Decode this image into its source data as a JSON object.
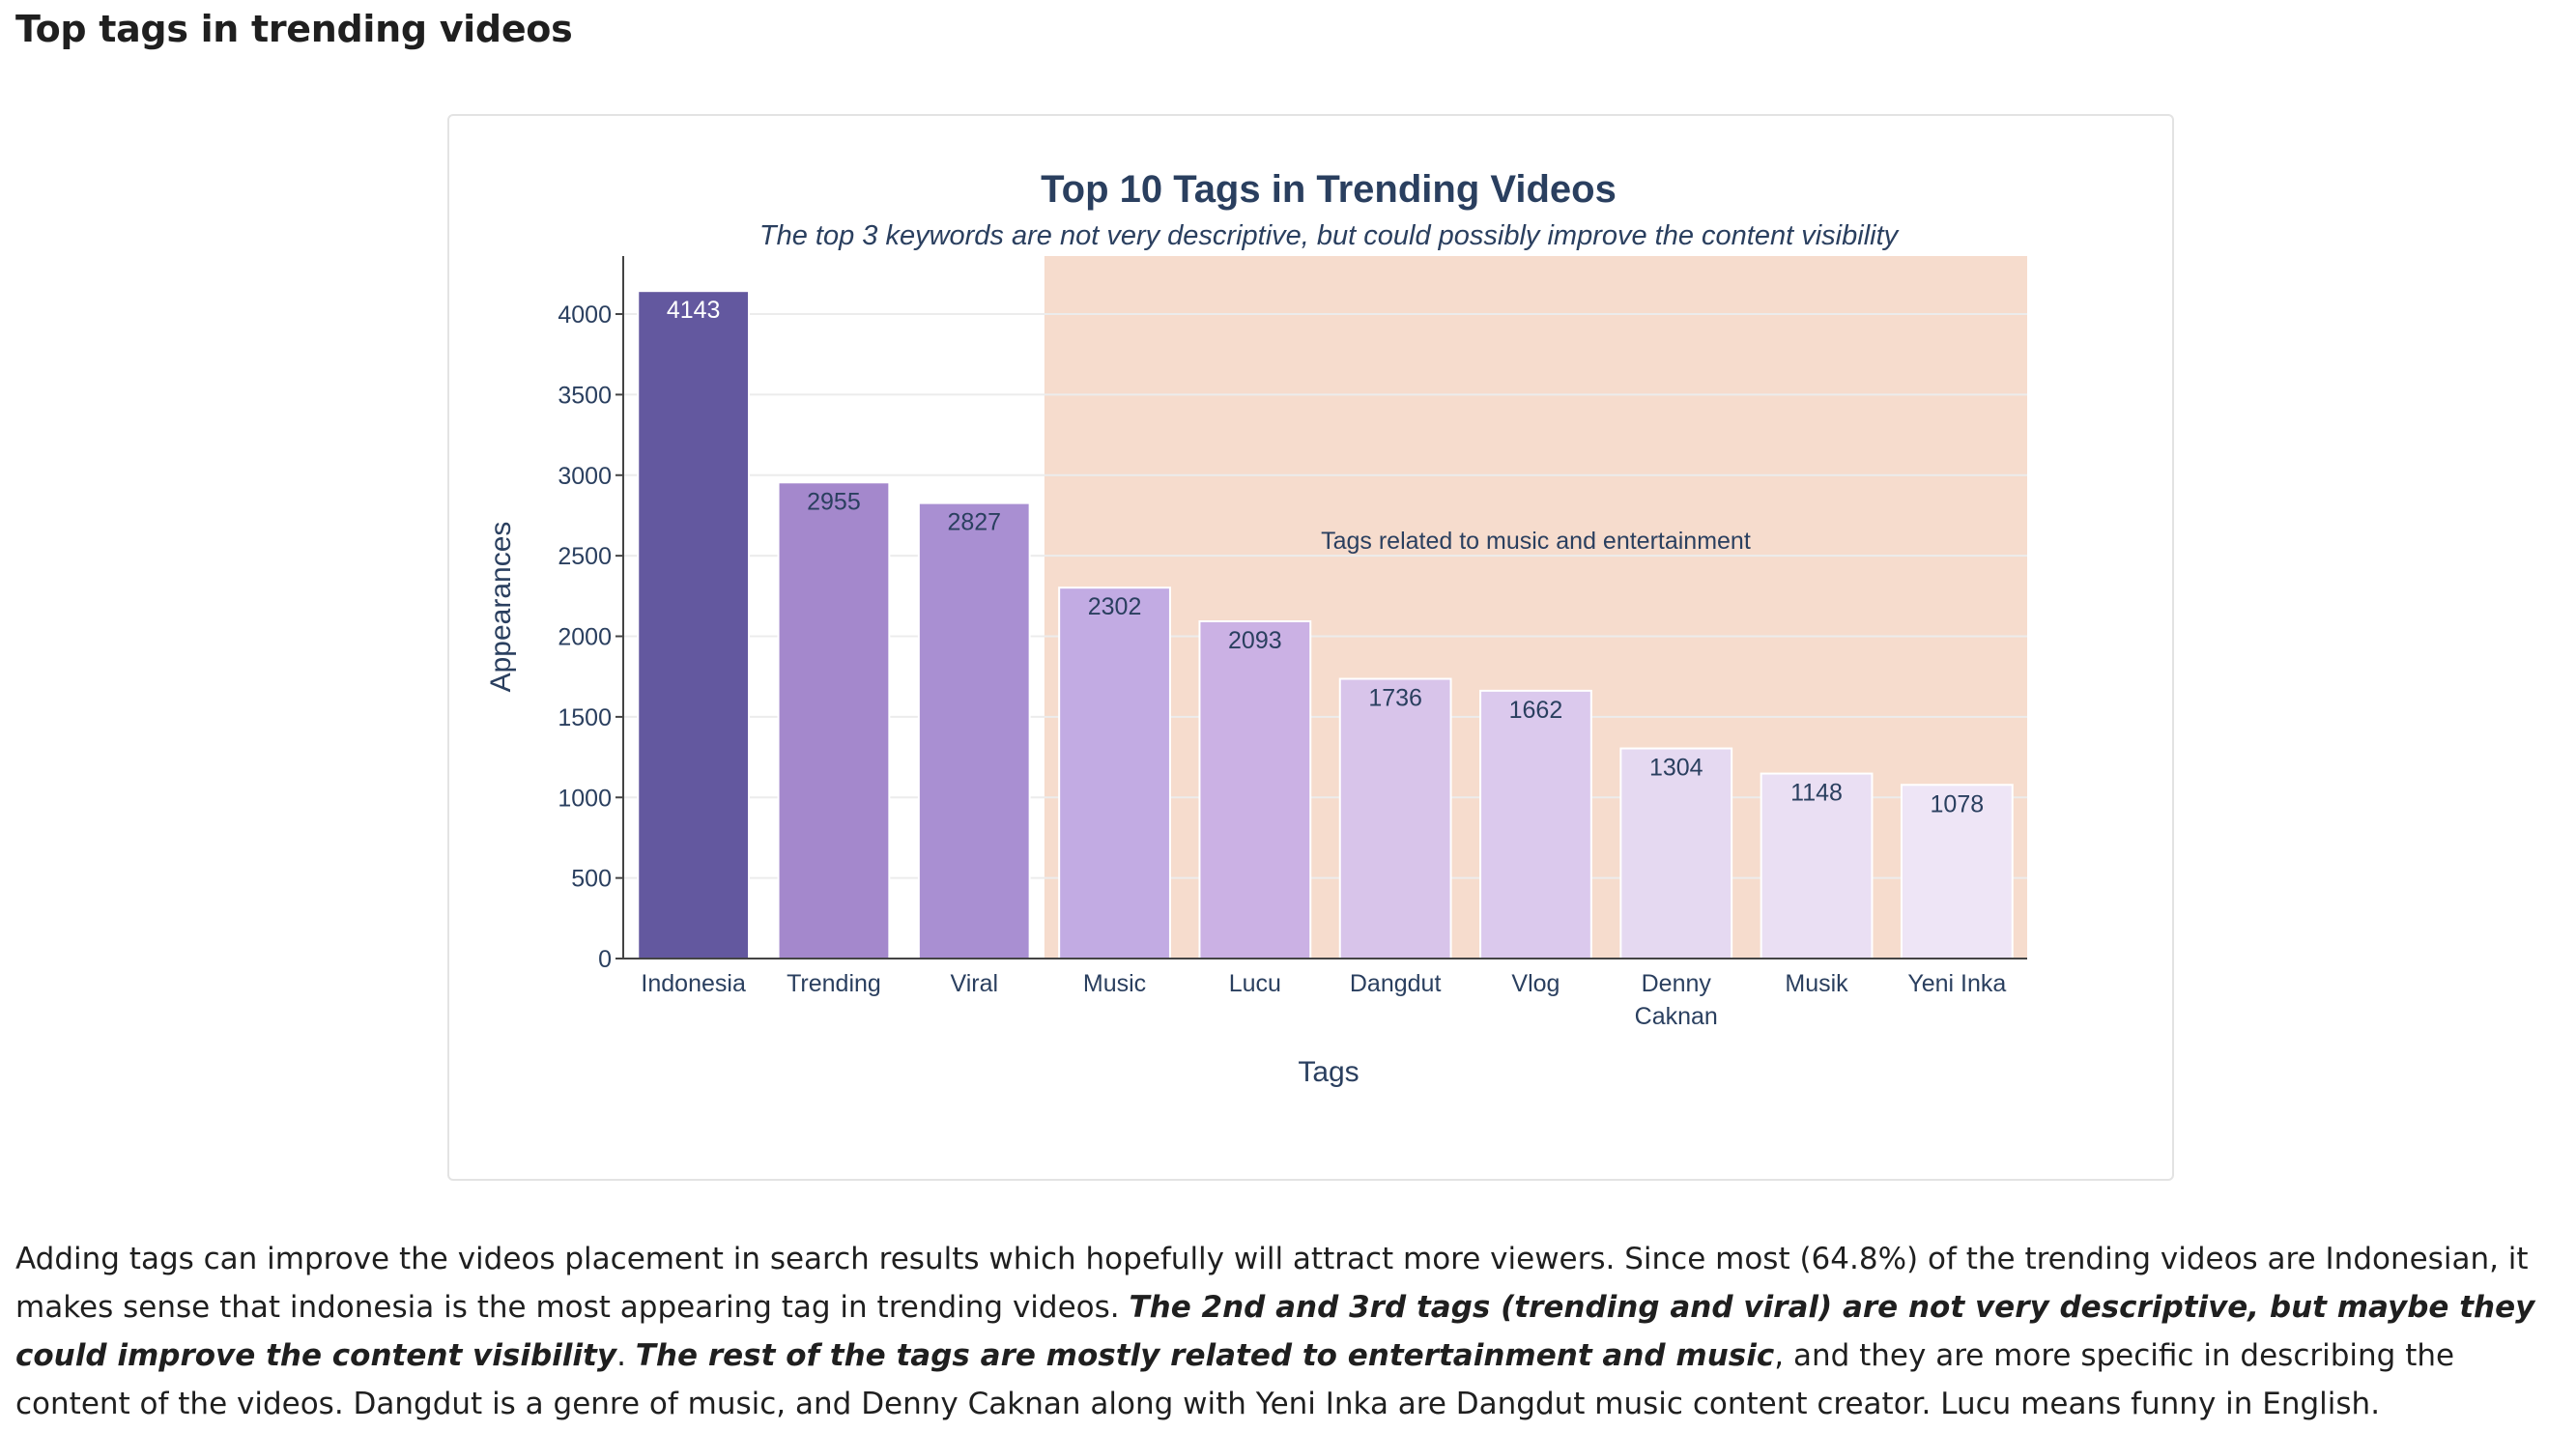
{
  "page": {
    "heading": "Top tags in trending videos"
  },
  "chart_data": {
    "type": "bar",
    "title": "Top 10 Tags in Trending Videos",
    "subtitle": "The top 3 keywords are not very descriptive, but could possibly improve the content visibility",
    "xlabel": "Tags",
    "ylabel": "Appearances",
    "ylim": [
      0,
      4360
    ],
    "yticks": [
      0,
      500,
      1000,
      1500,
      2000,
      2500,
      3000,
      3500,
      4000
    ],
    "grid": true,
    "categories": [
      "Indonesia",
      "Trending",
      "Viral",
      "Music",
      "Lucu",
      "Dangdut",
      "Vlog",
      "Denny Caknan",
      "Musik",
      "Yeni Inka"
    ],
    "category_lines": [
      [
        "Indonesia"
      ],
      [
        "Trending"
      ],
      [
        "Viral"
      ],
      [
        "Music"
      ],
      [
        "Lucu"
      ],
      [
        "Dangdut"
      ],
      [
        "Vlog"
      ],
      [
        "Denny",
        "Caknan"
      ],
      [
        "Musik"
      ],
      [
        "Yeni Inka"
      ]
    ],
    "values": [
      4143,
      2955,
      2827,
      2302,
      2093,
      1736,
      1662,
      1304,
      1148,
      1078
    ],
    "data_labels": [
      "4143",
      "2955",
      "2827",
      "2302",
      "2093",
      "1736",
      "1662",
      "1304",
      "1148",
      "1078"
    ],
    "bar_colors": [
      "#63589f",
      "#a488cc",
      "#a98fd2",
      "#c2abe3",
      "#cbb1e4",
      "#d8c4ea",
      "#dbc9ed",
      "#e5d9f1",
      "#eadff3",
      "#eee5f6"
    ],
    "label_colors": [
      "#ffffff",
      "#2a3f5f",
      "#2a3f5f",
      "#2a3f5f",
      "#2a3f5f",
      "#2a3f5f",
      "#2a3f5f",
      "#2a3f5f",
      "#2a3f5f",
      "#2a3f5f"
    ],
    "highlight_region": {
      "from_category": "Music",
      "to_category": "Yeni Inka",
      "label": "Tags related to music and entertainment",
      "color": "#f6dccd"
    }
  },
  "paragraph": {
    "part1": "Adding tags can improve the videos placement in search results which hopefully will attract more viewers. Since most (64.8%) of the trending videos are Indonesian, it makes sense that indonesia is the most appearing tag in trending videos. ",
    "emphasis1": "The 2nd and 3rd tags (trending and viral) are not very descriptive, but maybe they could improve the content visibility",
    "part2": ". ",
    "emphasis2": "The rest of the tags are mostly related to entertainment and music",
    "part3": ", and they are more specific in describing the content of the videos. Dangdut is a genre of music, and Denny Caknan along with Yeni Inka are Dangdut music content creator. Lucu means funny in English."
  },
  "colors": {
    "text": "#2a3f5f",
    "grid": "#ececec",
    "axis": "#444444"
  }
}
